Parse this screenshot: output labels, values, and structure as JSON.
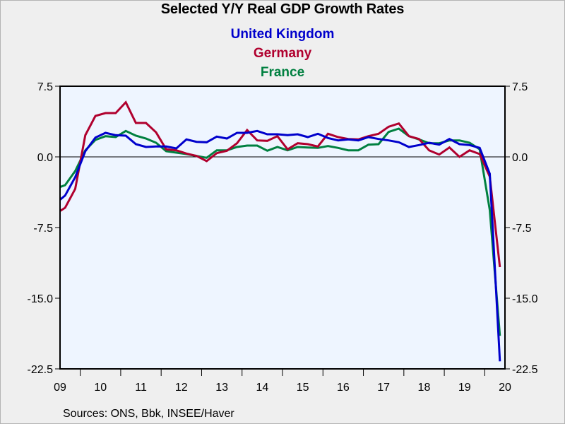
{
  "chart_data": {
    "type": "line",
    "title": "Selected Y/Y Real GDP Growth Rates",
    "xlabel": "",
    "ylabel": "",
    "source_note": "Sources:  ONS, Bbk, INSEE/Haver",
    "frequency": "quarterly",
    "x_start": "2009Q2",
    "x_visible_range": [
      "2009Q3",
      "2020Q2"
    ],
    "x_ticks": [
      "09",
      "10",
      "11",
      "12",
      "13",
      "14",
      "15",
      "16",
      "17",
      "18",
      "19",
      "20"
    ],
    "y_ticks": [
      "7.5",
      "0.0",
      "-7.5",
      "-15.0",
      "-22.5"
    ],
    "y_tick_values": [
      7.5,
      0,
      -7.5,
      -15,
      -22.5
    ],
    "ylim": [
      -22.5,
      7.5
    ],
    "zero_line": true,
    "grid": false,
    "legend_placement": "top-center",
    "series": [
      {
        "name": "United Kingdom",
        "color": "#0000cc",
        "values": [
          -5.0,
          -4.1,
          -2.15,
          0.6,
          2.05,
          2.55,
          2.3,
          2.25,
          1.35,
          1.05,
          1.1,
          1.1,
          0.9,
          1.85,
          1.6,
          1.55,
          2.15,
          1.95,
          2.55,
          2.55,
          2.75,
          2.4,
          2.4,
          2.3,
          2.4,
          2.1,
          2.45,
          2.0,
          1.75,
          1.85,
          1.75,
          2.1,
          1.9,
          1.75,
          1.55,
          1.05,
          1.25,
          1.5,
          1.3,
          1.9,
          1.35,
          1.25,
          0.95,
          -1.8,
          -21.7
        ]
      },
      {
        "name": "Germany",
        "color": "#b0002e",
        "values": [
          -6.1,
          -5.4,
          -3.4,
          2.3,
          4.35,
          4.65,
          4.65,
          5.8,
          3.6,
          3.6,
          2.6,
          0.8,
          0.7,
          0.35,
          0.1,
          -0.45,
          0.4,
          0.65,
          1.45,
          2.85,
          1.75,
          1.7,
          2.2,
          0.8,
          1.45,
          1.35,
          1.1,
          2.45,
          2.1,
          1.9,
          1.85,
          2.2,
          2.45,
          3.2,
          3.55,
          2.2,
          1.9,
          0.7,
          0.25,
          1.0,
          0.0,
          0.7,
          0.3,
          -2.1,
          -11.7
        ]
      },
      {
        "name": "France",
        "color": "#008040",
        "values": [
          -3.4,
          -3.0,
          -1.5,
          0.7,
          1.8,
          2.2,
          2.1,
          2.75,
          2.25,
          1.95,
          1.5,
          0.6,
          0.45,
          0.3,
          0.1,
          -0.1,
          0.7,
          0.7,
          1.05,
          1.2,
          1.2,
          0.65,
          1.05,
          0.7,
          1.05,
          1.0,
          0.95,
          1.15,
          0.95,
          0.7,
          0.7,
          1.3,
          1.35,
          2.65,
          3.0,
          2.2,
          1.85,
          1.45,
          1.45,
          1.75,
          1.75,
          1.5,
          0.8,
          -5.65,
          -19.0
        ]
      }
    ]
  }
}
